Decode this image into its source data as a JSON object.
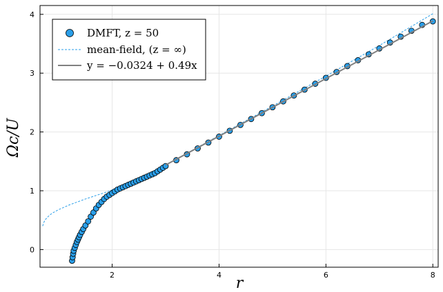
{
  "chart_data": {
    "type": "scatter",
    "title": "",
    "xlabel": "r",
    "ylabel": "Ωc/U",
    "xlim": [
      0.65,
      8.1
    ],
    "ylim": [
      -0.3,
      4.15
    ],
    "xticks": [
      2,
      4,
      6,
      8
    ],
    "yticks": [
      0,
      1,
      2,
      3,
      4
    ],
    "grid": true,
    "legend_position": "top-left",
    "series": [
      {
        "name": "DMFT, z = 50",
        "kind": "markers",
        "color": "#2a9ee8",
        "x": [
          1.25,
          1.26,
          1.27,
          1.28,
          1.3,
          1.32,
          1.34,
          1.36,
          1.38,
          1.4,
          1.43,
          1.46,
          1.5,
          1.55,
          1.6,
          1.65,
          1.7,
          1.75,
          1.8,
          1.85,
          1.9,
          1.95,
          2.0,
          2.05,
          2.1,
          2.15,
          2.2,
          2.25,
          2.3,
          2.35,
          2.4,
          2.45,
          2.5,
          2.55,
          2.6,
          2.65,
          2.7,
          2.75,
          2.8,
          2.85,
          2.9,
          2.95,
          3.0,
          3.2,
          3.4,
          3.6,
          3.8,
          4.0,
          4.2,
          4.4,
          4.6,
          4.8,
          5.0,
          5.2,
          5.4,
          5.6,
          5.8,
          6.0,
          6.2,
          6.4,
          6.6,
          6.8,
          7.0,
          7.2,
          7.4,
          7.6,
          7.8,
          8.0
        ],
        "y": [
          -0.19,
          -0.13,
          -0.07,
          -0.02,
          0.03,
          0.08,
          0.13,
          0.17,
          0.21,
          0.25,
          0.3,
          0.35,
          0.41,
          0.48,
          0.56,
          0.63,
          0.7,
          0.76,
          0.81,
          0.86,
          0.9,
          0.93,
          0.96,
          0.99,
          1.02,
          1.04,
          1.06,
          1.08,
          1.1,
          1.12,
          1.14,
          1.16,
          1.18,
          1.2,
          1.22,
          1.24,
          1.26,
          1.28,
          1.3,
          1.33,
          1.36,
          1.39,
          1.42,
          1.52,
          1.62,
          1.72,
          1.82,
          1.92,
          2.02,
          2.12,
          2.22,
          2.32,
          2.42,
          2.52,
          2.62,
          2.72,
          2.82,
          2.92,
          3.02,
          3.12,
          3.22,
          3.32,
          3.42,
          3.52,
          3.62,
          3.72,
          3.82,
          3.88
        ]
      },
      {
        "name": "mean-field, (z = ∞)",
        "kind": "dashed-line",
        "color": "#2a9ee8",
        "x": [
          0.7,
          0.72,
          0.75,
          0.8,
          0.85,
          0.9,
          1.0,
          1.1,
          1.2,
          1.35,
          1.5,
          1.7,
          1.9,
          2.1,
          2.3,
          2.6,
          3.0,
          4.0,
          5.0,
          6.0,
          7.0,
          8.0
        ],
        "y": [
          0.4,
          0.46,
          0.51,
          0.56,
          0.6,
          0.63,
          0.68,
          0.72,
          0.76,
          0.81,
          0.86,
          0.92,
          0.98,
          1.05,
          1.13,
          1.26,
          1.44,
          1.94,
          2.44,
          2.95,
          3.47,
          4.01
        ]
      },
      {
        "name": "y = −0.0324 + 0.49x",
        "kind": "solid-line",
        "color": "#808080",
        "intercept": -0.0324,
        "slope": 0.49,
        "x": [
          3.0,
          8.0
        ]
      }
    ]
  },
  "legend": {
    "entries": [
      {
        "label": "DMFT, z = 50"
      },
      {
        "label": "mean-field, (z = ∞)"
      },
      {
        "label": "y = −0.0324 + 0.49x"
      }
    ]
  }
}
